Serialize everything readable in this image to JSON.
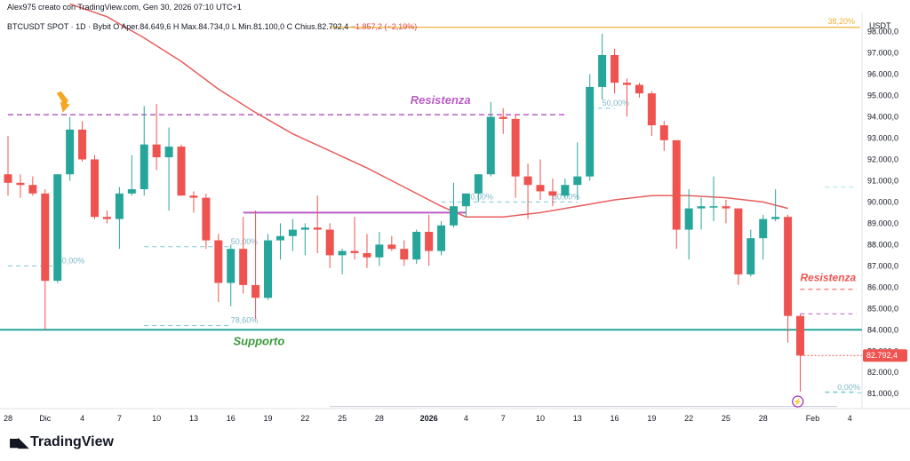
{
  "header": {
    "creator_line": "Alex975 creato con TradingView.com, Gen 30, 2026 07:10 UTC+1",
    "symbol": "BTCUSDT SPOT · 1D · Bybit",
    "open_label": "O",
    "open": "Aper.84.649,6",
    "high_label": "H",
    "high": "Max.84.734,0",
    "low_label": "L",
    "low": "Min.81.100,0",
    "close_label": "C",
    "close": "Chius.82.792,4",
    "change": "−1.857,2 (−2,19%)"
  },
  "brand": {
    "name": "TradingView",
    "icon": "tradingview-logo-icon"
  },
  "currency": "USDT",
  "colors": {
    "up": "#26a69a",
    "down": "#ef5350",
    "ma": "#e85d5d",
    "fib": "#f2b035",
    "support": "#26a69a",
    "resistance_purple": "#b85cc4",
    "last_price": "#ef5350"
  },
  "chart_data": {
    "type": "candlestick",
    "interval": "1D",
    "ylim": [
      80300,
      98900
    ],
    "y_ticks": [
      81000,
      82000,
      83000,
      84000,
      85000,
      86000,
      87000,
      88000,
      89000,
      90000,
      91000,
      92000,
      93000,
      94000,
      95000,
      96000,
      97000,
      98000
    ],
    "y_tick_labels": [
      "81.000,0",
      "82.000,0",
      "83.000,0",
      "84.000,0",
      "85.000,0",
      "86.000,0",
      "87.000,0",
      "88.000,0",
      "89.000,0",
      "90.000,0",
      "91.000,0",
      "92.000,0",
      "93.000,0",
      "94.000,0",
      "95.000,0",
      "96.000,0",
      "97.000,0",
      "98.000,0"
    ],
    "x_ticks": [
      {
        "i": 0,
        "label": "28"
      },
      {
        "i": 3,
        "label": "Dic"
      },
      {
        "i": 6,
        "label": "4"
      },
      {
        "i": 9,
        "label": "7"
      },
      {
        "i": 12,
        "label": "10"
      },
      {
        "i": 15,
        "label": "13"
      },
      {
        "i": 18,
        "label": "16"
      },
      {
        "i": 21,
        "label": "19"
      },
      {
        "i": 24,
        "label": "22"
      },
      {
        "i": 27,
        "label": "25"
      },
      {
        "i": 30,
        "label": "28"
      },
      {
        "i": 34,
        "label": "2026"
      },
      {
        "i": 37,
        "label": "4"
      },
      {
        "i": 40,
        "label": "7"
      },
      {
        "i": 43,
        "label": "10"
      },
      {
        "i": 46,
        "label": "13"
      },
      {
        "i": 49,
        "label": "16"
      },
      {
        "i": 52,
        "label": "19"
      },
      {
        "i": 55,
        "label": "22"
      },
      {
        "i": 58,
        "label": "25"
      },
      {
        "i": 61,
        "label": "28"
      },
      {
        "i": 65,
        "label": "Feb"
      },
      {
        "i": 68,
        "label": "4"
      }
    ],
    "candles": [
      {
        "o": 91300,
        "h": 93100,
        "l": 90300,
        "c": 90900
      },
      {
        "o": 90900,
        "h": 91300,
        "l": 90200,
        "c": 90800
      },
      {
        "o": 90800,
        "h": 91200,
        "l": 90300,
        "c": 90400
      },
      {
        "o": 90400,
        "h": 90600,
        "l": 84000,
        "c": 86300
      },
      {
        "o": 86300,
        "h": 91300,
        "l": 86200,
        "c": 91300
      },
      {
        "o": 91300,
        "h": 94000,
        "l": 91000,
        "c": 93400
      },
      {
        "o": 93400,
        "h": 93800,
        "l": 91900,
        "c": 92000
      },
      {
        "o": 92000,
        "h": 92200,
        "l": 89200,
        "c": 89300
      },
      {
        "o": 89300,
        "h": 89600,
        "l": 89000,
        "c": 89200
      },
      {
        "o": 89200,
        "h": 90700,
        "l": 87800,
        "c": 90400
      },
      {
        "o": 90400,
        "h": 92200,
        "l": 90300,
        "c": 90600
      },
      {
        "o": 90600,
        "h": 94500,
        "l": 90300,
        "c": 92700
      },
      {
        "o": 92700,
        "h": 94600,
        "l": 91500,
        "c": 92100
      },
      {
        "o": 92100,
        "h": 93500,
        "l": 89600,
        "c": 92600
      },
      {
        "o": 92600,
        "h": 92700,
        "l": 90300,
        "c": 90300
      },
      {
        "o": 90300,
        "h": 90500,
        "l": 89500,
        "c": 90200
      },
      {
        "o": 90200,
        "h": 90400,
        "l": 87800,
        "c": 88200
      },
      {
        "o": 88200,
        "h": 88500,
        "l": 85300,
        "c": 86200
      },
      {
        "o": 86200,
        "h": 88000,
        "l": 85100,
        "c": 87800
      },
      {
        "o": 87800,
        "h": 89300,
        "l": 85700,
        "c": 86100
      },
      {
        "o": 86100,
        "h": 89600,
        "l": 84500,
        "c": 85500
      },
      {
        "o": 85500,
        "h": 88500,
        "l": 85400,
        "c": 88200
      },
      {
        "o": 88200,
        "h": 89000,
        "l": 87300,
        "c": 88400
      },
      {
        "o": 88400,
        "h": 89200,
        "l": 87700,
        "c": 88700
      },
      {
        "o": 88700,
        "h": 89000,
        "l": 87500,
        "c": 88800
      },
      {
        "o": 88800,
        "h": 90300,
        "l": 87600,
        "c": 88700
      },
      {
        "o": 88700,
        "h": 89000,
        "l": 86900,
        "c": 87500
      },
      {
        "o": 87500,
        "h": 87800,
        "l": 86600,
        "c": 87700
      },
      {
        "o": 87700,
        "h": 89300,
        "l": 87300,
        "c": 87600
      },
      {
        "o": 87600,
        "h": 88500,
        "l": 86900,
        "c": 87400
      },
      {
        "o": 87400,
        "h": 88600,
        "l": 87000,
        "c": 88000
      },
      {
        "o": 88000,
        "h": 88400,
        "l": 87700,
        "c": 87800
      },
      {
        "o": 87800,
        "h": 88200,
        "l": 87000,
        "c": 87300
      },
      {
        "o": 87300,
        "h": 88700,
        "l": 87100,
        "c": 88600
      },
      {
        "o": 88600,
        "h": 89400,
        "l": 87000,
        "c": 87700
      },
      {
        "o": 87700,
        "h": 89100,
        "l": 87500,
        "c": 88900
      },
      {
        "o": 88900,
        "h": 90900,
        "l": 88800,
        "c": 89800
      },
      {
        "o": 89800,
        "h": 90400,
        "l": 89300,
        "c": 90400
      },
      {
        "o": 90400,
        "h": 91300,
        "l": 90000,
        "c": 91300
      },
      {
        "o": 91300,
        "h": 94700,
        "l": 91200,
        "c": 94000
      },
      {
        "o": 94000,
        "h": 94400,
        "l": 93200,
        "c": 93900
      },
      {
        "o": 93900,
        "h": 94100,
        "l": 90200,
        "c": 91200
      },
      {
        "o": 91200,
        "h": 91800,
        "l": 89200,
        "c": 90800
      },
      {
        "o": 90800,
        "h": 92000,
        "l": 90100,
        "c": 90500
      },
      {
        "o": 90500,
        "h": 91100,
        "l": 89800,
        "c": 90300
      },
      {
        "o": 90300,
        "h": 91100,
        "l": 90200,
        "c": 90800
      },
      {
        "o": 90800,
        "h": 92800,
        "l": 90100,
        "c": 91200
      },
      {
        "o": 91200,
        "h": 96000,
        "l": 91000,
        "c": 95400
      },
      {
        "o": 95400,
        "h": 97900,
        "l": 94800,
        "c": 96900
      },
      {
        "o": 96900,
        "h": 97200,
        "l": 95100,
        "c": 95600
      },
      {
        "o": 95600,
        "h": 95800,
        "l": 94000,
        "c": 95500
      },
      {
        "o": 95500,
        "h": 95600,
        "l": 94900,
        "c": 95100
      },
      {
        "o": 95100,
        "h": 95200,
        "l": 93100,
        "c": 93600
      },
      {
        "o": 93600,
        "h": 93800,
        "l": 92400,
        "c": 92900
      },
      {
        "o": 92900,
        "h": 92900,
        "l": 87800,
        "c": 88700
      },
      {
        "o": 88700,
        "h": 90600,
        "l": 87300,
        "c": 89700
      },
      {
        "o": 89700,
        "h": 90200,
        "l": 88700,
        "c": 89800
      },
      {
        "o": 89800,
        "h": 91200,
        "l": 89100,
        "c": 89800
      },
      {
        "o": 89800,
        "h": 90100,
        "l": 89000,
        "c": 89700
      },
      {
        "o": 89700,
        "h": 89600,
        "l": 86100,
        "c": 86600
      },
      {
        "o": 86600,
        "h": 88700,
        "l": 86500,
        "c": 88300
      },
      {
        "o": 88300,
        "h": 89400,
        "l": 87300,
        "c": 89200
      },
      {
        "o": 89200,
        "h": 90600,
        "l": 89100,
        "c": 89300
      },
      {
        "o": 89300,
        "h": 89400,
        "l": 83400,
        "c": 84650
      },
      {
        "o": 84650,
        "h": 84734,
        "l": 81100,
        "c": 82792
      }
    ],
    "moving_average": [
      {
        "i": 5,
        "v": 99300
      },
      {
        "i": 8,
        "v": 98700
      },
      {
        "i": 11,
        "v": 97700
      },
      {
        "i": 14,
        "v": 96600
      },
      {
        "i": 17,
        "v": 95300
      },
      {
        "i": 20,
        "v": 94200
      },
      {
        "i": 23,
        "v": 93200
      },
      {
        "i": 26,
        "v": 92400
      },
      {
        "i": 29,
        "v": 91600
      },
      {
        "i": 32,
        "v": 90700
      },
      {
        "i": 35,
        "v": 89800
      },
      {
        "i": 37,
        "v": 89300
      },
      {
        "i": 40,
        "v": 89300
      },
      {
        "i": 43,
        "v": 89500
      },
      {
        "i": 46,
        "v": 89800
      },
      {
        "i": 49,
        "v": 90100
      },
      {
        "i": 52,
        "v": 90300
      },
      {
        "i": 55,
        "v": 90300
      },
      {
        "i": 58,
        "v": 90200
      },
      {
        "i": 61,
        "v": 90000
      },
      {
        "i": 63,
        "v": 89700
      }
    ],
    "support": {
      "price": 84000,
      "label": "Supporto"
    },
    "resistance_top": {
      "price": 94100,
      "label": "Resistenza",
      "from_i": 0,
      "to_i": 45
    },
    "resistance_right": {
      "price": 85900,
      "label": "Resistenza"
    },
    "resistance_right_2": {
      "price": 84750
    },
    "purple_level": {
      "price": 89500,
      "from_i": 19,
      "to_i": 37
    },
    "fib_top": {
      "price": 98200,
      "label": "38,20%",
      "from_i": 26
    },
    "fib_labels": [
      {
        "text": "50,00%",
        "i": 4,
        "price": 87000,
        "line_from_i": 0,
        "line_to_i": 4
      },
      {
        "text": "50,00%",
        "i": 18,
        "price": 87900,
        "line_from_i": 11,
        "line_to_i": 18
      },
      {
        "text": "78,60%",
        "i": 18,
        "price": 84200,
        "line_from_i": 11,
        "line_to_i": 18
      },
      {
        "text": "50,00%",
        "i": 37,
        "price": 90000,
        "line_from_i": 35,
        "line_to_i": 42
      },
      {
        "text": "50,00%",
        "i": 44,
        "price": 90000,
        "line_from_i": 42,
        "line_to_i": 46
      },
      {
        "text": "50,00%",
        "i": 48,
        "price": 94400,
        "line_from_i": 47,
        "line_to_i": 49
      },
      {
        "text": "0,00%",
        "i": 67,
        "price": 81050,
        "line_from_i": 66,
        "line_to_i": 69
      }
    ],
    "right_dashed": [
      {
        "price": 90700
      },
      {
        "price": 81100
      }
    ],
    "bottom_range": {
      "price": 80400,
      "from_i": 26,
      "to_i": 67
    },
    "last_price": {
      "value": 82792,
      "label": "82.792,4"
    }
  }
}
